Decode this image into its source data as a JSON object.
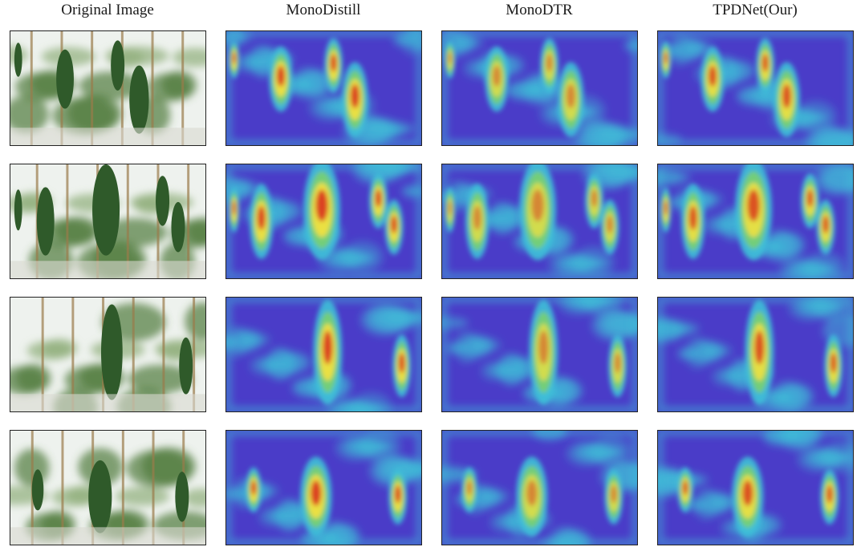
{
  "figure": {
    "columns": [
      {
        "key": "original",
        "label": "Original Image"
      },
      {
        "key": "monodistill",
        "label": "MonoDistill"
      },
      {
        "key": "monodtr",
        "label": "MonoDTR"
      },
      {
        "key": "tpdnet",
        "label": "TPDNet(Our)"
      }
    ],
    "rows": [
      {
        "row": 1
      },
      {
        "row": 2
      },
      {
        "row": 3
      },
      {
        "row": 4
      }
    ],
    "palette": {
      "heat_low": "#4a3cc8",
      "heat_mid": "#3fc0d8",
      "heat_warm": "#f0e040",
      "heat_high": "#d8261a",
      "photo_sky": "#eef2ee",
      "photo_leaf": "#4f7a3a",
      "gourd": "#2f5a2a",
      "border": "#222222"
    }
  }
}
